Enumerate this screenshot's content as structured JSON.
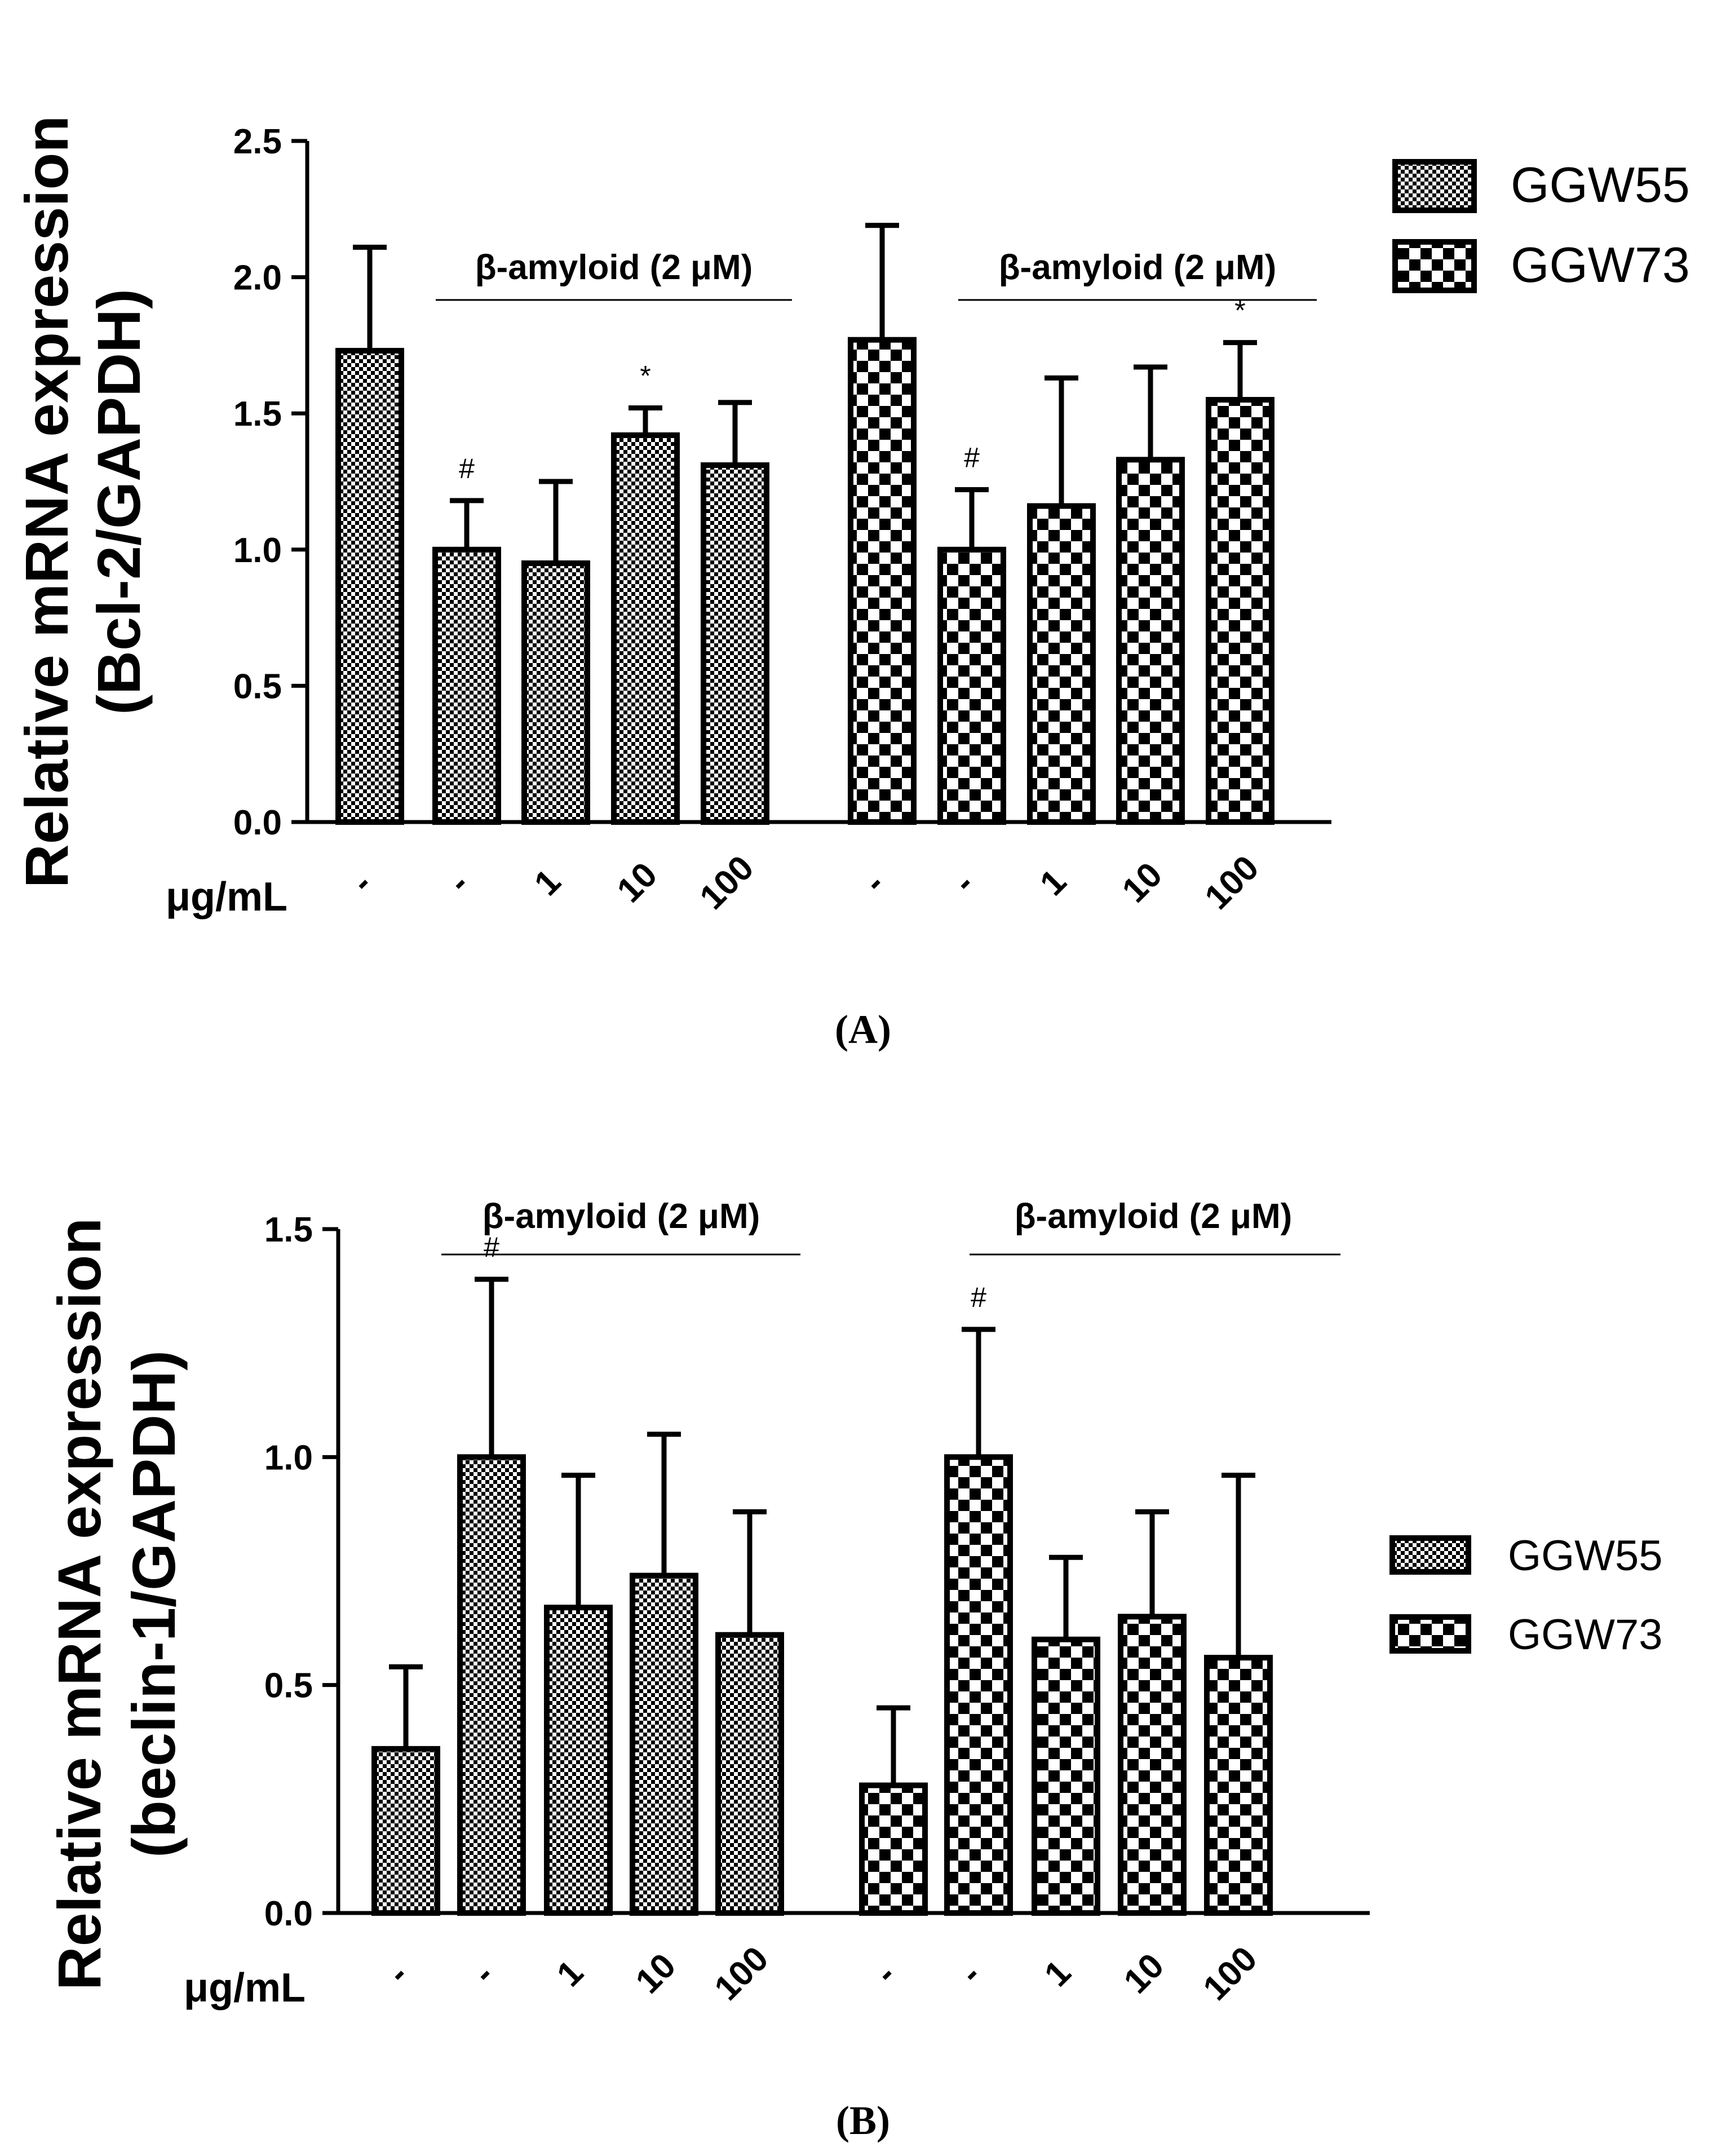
{
  "figure": {
    "panel_a_caption": "(A)",
    "panel_b_caption": "(B)"
  },
  "colors": {
    "bar_fill_base": "#ffffff",
    "ink": "#000000"
  },
  "chart_data": [
    {
      "type": "bar",
      "panel": "A",
      "ylabel_line1": "Relative mRNA expression",
      "ylabel_line2": "(Bcl-2/GAPDH)",
      "ylim": [
        0,
        2.5
      ],
      "yticks": [
        "0.0",
        "0.5",
        "1.0",
        "1.5",
        "2.0",
        "2.5"
      ],
      "xaxis_title": "μg/mL",
      "categories": [
        "-",
        "-",
        "1",
        "10",
        "100"
      ],
      "bracket_label": "β-amyloid (2 μM)",
      "legend": [
        "GGW55",
        "GGW73"
      ],
      "legend_position": "top-right",
      "series": [
        {
          "name": "GGW55",
          "pattern": "fine-check",
          "values": [
            1.73,
            1.0,
            0.95,
            1.42,
            1.31
          ],
          "errors": [
            0.38,
            0.18,
            0.3,
            0.1,
            0.23
          ],
          "annotations": [
            "",
            "#",
            "",
            "*",
            ""
          ]
        },
        {
          "name": "GGW73",
          "pattern": "coarse-check",
          "values": [
            1.77,
            1.0,
            1.16,
            1.33,
            1.55
          ],
          "errors": [
            0.42,
            0.22,
            0.47,
            0.34,
            0.21
          ],
          "annotations": [
            "",
            "#",
            "",
            "",
            "*"
          ]
        }
      ]
    },
    {
      "type": "bar",
      "panel": "B",
      "ylabel_line1": "Relative mRNA expression",
      "ylabel_line2": "(beclin-1/GAPDH)",
      "ylim": [
        0,
        1.5
      ],
      "yticks": [
        "0.0",
        "0.5",
        "1.0",
        "1.5"
      ],
      "xaxis_title": "μg/mL",
      "categories": [
        "-",
        "-",
        "1",
        "10",
        "100"
      ],
      "bracket_label": "β-amyloid (2 μM)",
      "legend": [
        "GGW55",
        "GGW73"
      ],
      "legend_position": "right",
      "series": [
        {
          "name": "GGW55",
          "pattern": "fine-check",
          "values": [
            0.36,
            1.0,
            0.67,
            0.74,
            0.61
          ],
          "errors": [
            0.18,
            0.39,
            0.29,
            0.31,
            0.27
          ],
          "annotations": [
            "",
            "#",
            "",
            "",
            ""
          ]
        },
        {
          "name": "GGW73",
          "pattern": "coarse-check",
          "values": [
            0.28,
            1.0,
            0.6,
            0.65,
            0.56
          ],
          "errors": [
            0.17,
            0.28,
            0.18,
            0.23,
            0.4
          ],
          "annotations": [
            "",
            "#",
            "",
            "",
            ""
          ]
        }
      ]
    }
  ]
}
